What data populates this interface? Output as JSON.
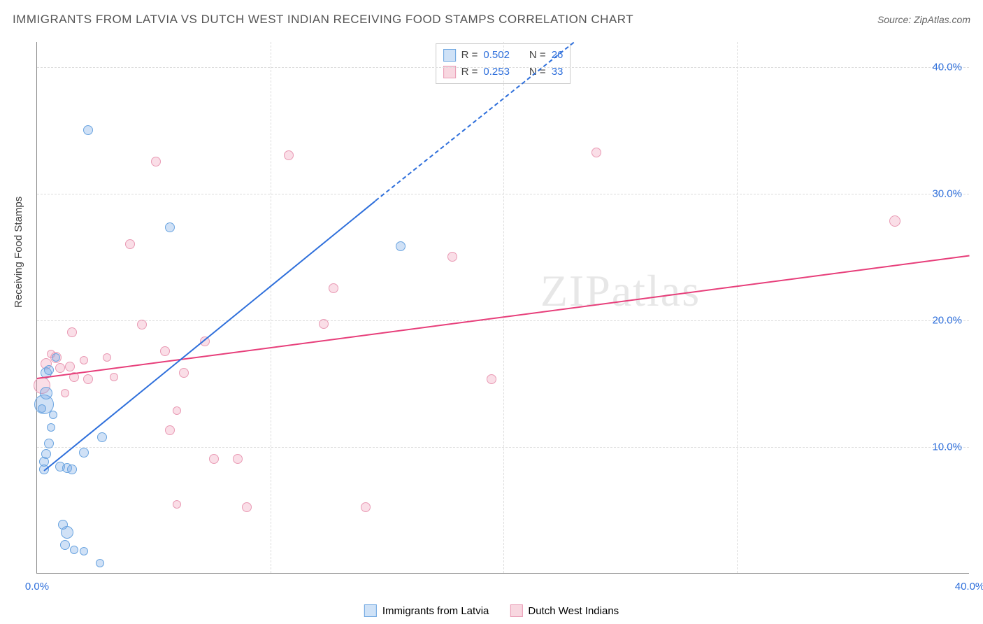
{
  "title": "IMMIGRANTS FROM LATVIA VS DUTCH WEST INDIAN RECEIVING FOOD STAMPS CORRELATION CHART",
  "source_label": "Source: ",
  "source_name": "ZipAtlas.com",
  "y_axis_title": "Receiving Food Stamps",
  "watermark": "ZIPatlas",
  "chart": {
    "type": "scatter",
    "xlim": [
      0,
      40
    ],
    "ylim": [
      0,
      42
    ],
    "x_ticks": [
      0,
      10,
      20,
      30,
      40
    ],
    "y_ticks": [
      10,
      20,
      30,
      40
    ],
    "x_tick_labels": [
      "0.0%",
      "",
      "",
      "",
      "40.0%"
    ],
    "y_tick_labels": [
      "10.0%",
      "20.0%",
      "30.0%",
      "40.0%"
    ],
    "x_tick_color": "#2e6fdb",
    "y_tick_color": "#2e6fdb",
    "grid_color": "#dddddd",
    "background_color": "#ffffff",
    "axis_color": "#888888"
  },
  "series": {
    "latvia": {
      "label": "Immigrants from Latvia",
      "fill": "rgba(120,170,230,0.35)",
      "stroke": "#6aa4e0",
      "swatch_fill": "#cfe2f7",
      "swatch_border": "#6aa4e0",
      "trend_color": "#2e6fdb",
      "r_label": "R = ",
      "r_value": "0.502",
      "n_label": "N = ",
      "n_value": "26",
      "trend": {
        "x1": 0.3,
        "y1": 8.2,
        "x2_solid": 14.5,
        "y2_solid": 29.5,
        "x2_dash": 23,
        "y2_dash": 42
      },
      "points": [
        {
          "x": 0.3,
          "y": 13.3,
          "r": 14
        },
        {
          "x": 0.4,
          "y": 14.2,
          "r": 9
        },
        {
          "x": 0.4,
          "y": 15.8,
          "r": 8
        },
        {
          "x": 0.5,
          "y": 16.0,
          "r": 7
        },
        {
          "x": 0.8,
          "y": 17.0,
          "r": 6
        },
        {
          "x": 0.5,
          "y": 10.2,
          "r": 7
        },
        {
          "x": 0.4,
          "y": 9.4,
          "r": 7
        },
        {
          "x": 0.3,
          "y": 8.8,
          "r": 7
        },
        {
          "x": 0.3,
          "y": 8.2,
          "r": 7
        },
        {
          "x": 1.0,
          "y": 8.4,
          "r": 7
        },
        {
          "x": 1.3,
          "y": 8.3,
          "r": 7
        },
        {
          "x": 1.5,
          "y": 8.2,
          "r": 7
        },
        {
          "x": 2.0,
          "y": 9.5,
          "r": 7
        },
        {
          "x": 2.8,
          "y": 10.7,
          "r": 7
        },
        {
          "x": 1.1,
          "y": 3.8,
          "r": 7
        },
        {
          "x": 1.3,
          "y": 3.2,
          "r": 9
        },
        {
          "x": 1.2,
          "y": 2.2,
          "r": 7
        },
        {
          "x": 1.6,
          "y": 1.8,
          "r": 6
        },
        {
          "x": 2.0,
          "y": 1.7,
          "r": 6
        },
        {
          "x": 2.7,
          "y": 0.8,
          "r": 6
        },
        {
          "x": 2.2,
          "y": 35.0,
          "r": 7
        },
        {
          "x": 5.7,
          "y": 27.3,
          "r": 7
        },
        {
          "x": 15.6,
          "y": 25.8,
          "r": 7
        },
        {
          "x": 0.6,
          "y": 11.5,
          "r": 6
        },
        {
          "x": 0.7,
          "y": 12.5,
          "r": 6
        },
        {
          "x": 0.2,
          "y": 13.0,
          "r": 6
        }
      ]
    },
    "dutch": {
      "label": "Dutch West Indians",
      "fill": "rgba(240,160,185,0.35)",
      "stroke": "#e99ab4",
      "swatch_fill": "#f8d7e0",
      "swatch_border": "#e99ab4",
      "trend_color": "#e73e7a",
      "r_label": "R = ",
      "r_value": "0.253",
      "n_label": "N = ",
      "n_value": "33",
      "trend": {
        "x1": 0,
        "y1": 15.5,
        "x2": 40,
        "y2": 25.2
      },
      "points": [
        {
          "x": 0.2,
          "y": 14.8,
          "r": 12
        },
        {
          "x": 0.4,
          "y": 16.5,
          "r": 8
        },
        {
          "x": 0.8,
          "y": 17.0,
          "r": 8
        },
        {
          "x": 1.0,
          "y": 16.2,
          "r": 7
        },
        {
          "x": 1.4,
          "y": 16.3,
          "r": 7
        },
        {
          "x": 1.6,
          "y": 15.5,
          "r": 7
        },
        {
          "x": 2.2,
          "y": 15.3,
          "r": 7
        },
        {
          "x": 1.5,
          "y": 19.0,
          "r": 7
        },
        {
          "x": 3.3,
          "y": 15.5,
          "r": 6
        },
        {
          "x": 4.0,
          "y": 26.0,
          "r": 7
        },
        {
          "x": 4.5,
          "y": 19.6,
          "r": 7
        },
        {
          "x": 5.1,
          "y": 32.5,
          "r": 7
        },
        {
          "x": 5.5,
          "y": 17.5,
          "r": 7
        },
        {
          "x": 5.7,
          "y": 11.3,
          "r": 7
        },
        {
          "x": 6.0,
          "y": 12.8,
          "r": 6
        },
        {
          "x": 6.0,
          "y": 5.4,
          "r": 6
        },
        {
          "x": 6.3,
          "y": 15.8,
          "r": 7
        },
        {
          "x": 7.2,
          "y": 18.3,
          "r": 7
        },
        {
          "x": 7.6,
          "y": 9.0,
          "r": 7
        },
        {
          "x": 8.6,
          "y": 9.0,
          "r": 7
        },
        {
          "x": 9.0,
          "y": 5.2,
          "r": 7
        },
        {
          "x": 10.8,
          "y": 33.0,
          "r": 7
        },
        {
          "x": 12.3,
          "y": 19.7,
          "r": 7
        },
        {
          "x": 12.7,
          "y": 22.5,
          "r": 7
        },
        {
          "x": 14.1,
          "y": 5.2,
          "r": 7
        },
        {
          "x": 17.8,
          "y": 25.0,
          "r": 7
        },
        {
          "x": 19.5,
          "y": 15.3,
          "r": 7
        },
        {
          "x": 24.0,
          "y": 33.2,
          "r": 7
        },
        {
          "x": 36.8,
          "y": 27.8,
          "r": 8
        },
        {
          "x": 0.6,
          "y": 17.3,
          "r": 6
        },
        {
          "x": 1.2,
          "y": 14.2,
          "r": 6
        },
        {
          "x": 2.0,
          "y": 16.8,
          "r": 6
        },
        {
          "x": 3.0,
          "y": 17.0,
          "r": 6
        }
      ]
    }
  },
  "bottom_legend": [
    "latvia",
    "dutch"
  ]
}
